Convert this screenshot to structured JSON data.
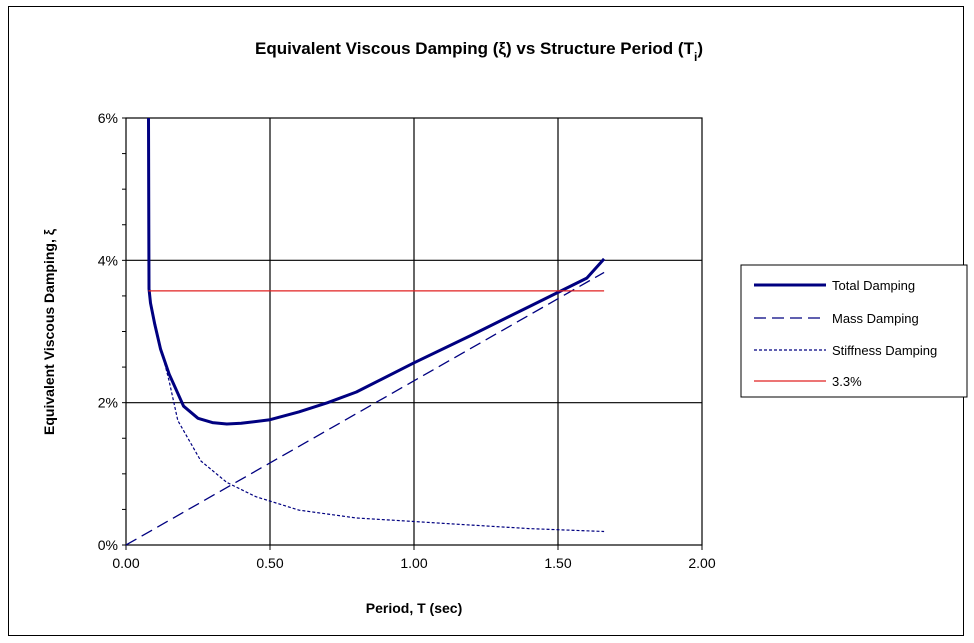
{
  "chart_data": {
    "type": "line",
    "title": "Equivalent Viscous Damping (ξ) vs Structure Period (T",
    "title_subscript": "i",
    "title_close": ")",
    "xlabel": "Period, T (sec)",
    "ylabel": "Equivalent Viscous Damping, ξ",
    "xlim": [
      0,
      2.0
    ],
    "ylim": [
      0,
      0.06
    ],
    "x_ticks": [
      0,
      0.5,
      1.0,
      1.5,
      2.0
    ],
    "x_tick_labels": [
      "0.00",
      "0.50",
      "1.00",
      "1.50",
      "2.00"
    ],
    "y_ticks": [
      0,
      0.02,
      0.04,
      0.06
    ],
    "y_tick_labels": [
      "0%",
      "2%",
      "4%",
      "6%"
    ],
    "grid": true,
    "legend_position": "right",
    "series": [
      {
        "name": "Total Damping",
        "color": "#000080",
        "style": "solid-thick",
        "x": [
          0.078,
          0.079,
          0.08,
          0.085,
          0.1,
          0.12,
          0.15,
          0.2,
          0.25,
          0.3,
          0.35,
          0.4,
          0.5,
          0.6,
          0.7,
          0.8,
          1.0,
          1.2,
          1.4,
          1.6,
          1.66
        ],
        "y": [
          0.06,
          0.045,
          0.036,
          0.034,
          0.031,
          0.0275,
          0.024,
          0.0195,
          0.0178,
          0.0172,
          0.017,
          0.0171,
          0.0176,
          0.0187,
          0.02,
          0.0215,
          0.0256,
          0.0295,
          0.0335,
          0.0375,
          0.0402
        ]
      },
      {
        "name": "Mass Damping",
        "color": "#000080",
        "style": "dashed",
        "x": [
          0,
          1.66
        ],
        "y": [
          0,
          0.0383
        ]
      },
      {
        "name": "Stiffness Damping",
        "color": "#000080",
        "style": "dotted",
        "x": [
          0.1,
          0.15,
          0.18,
          0.26,
          0.35,
          0.45,
          0.6,
          0.8,
          1.0,
          1.2,
          1.4,
          1.66
        ],
        "y": [
          0.031,
          0.023,
          0.0175,
          0.0118,
          0.0088,
          0.0068,
          0.0049,
          0.0038,
          0.0033,
          0.0028,
          0.0023,
          0.0019
        ]
      },
      {
        "name": "3.3%",
        "color": "#e02020",
        "style": "solid-thin",
        "x": [
          0.078,
          1.66
        ],
        "y": [
          0.0357,
          0.0357
        ]
      }
    ]
  }
}
